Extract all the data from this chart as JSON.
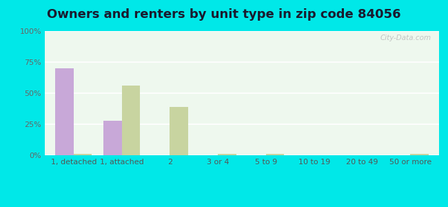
{
  "title": "Owners and renters by unit type in zip code 84056",
  "categories": [
    "1, detached",
    "1, attached",
    "2",
    "3 or 4",
    "5 to 9",
    "10 to 19",
    "20 to 49",
    "50 or more"
  ],
  "owner_values": [
    70,
    28,
    0,
    0,
    0,
    0,
    0,
    0
  ],
  "renter_values": [
    1,
    56,
    39,
    1,
    1,
    0,
    0,
    1
  ],
  "owner_color": "#c8a8d8",
  "renter_color": "#c8d4a0",
  "background_outer": "#00e8e8",
  "background_plot_top": "#e8f5e0",
  "background_plot_bot": "#f0faf0",
  "ylim": [
    0,
    100
  ],
  "yticks": [
    0,
    25,
    50,
    75,
    100
  ],
  "ytick_labels": [
    "0%",
    "25%",
    "50%",
    "75%",
    "100%"
  ],
  "title_fontsize": 13,
  "tick_fontsize": 8,
  "legend_fontsize": 9,
  "bar_width": 0.38,
  "watermark": "City-Data.com"
}
